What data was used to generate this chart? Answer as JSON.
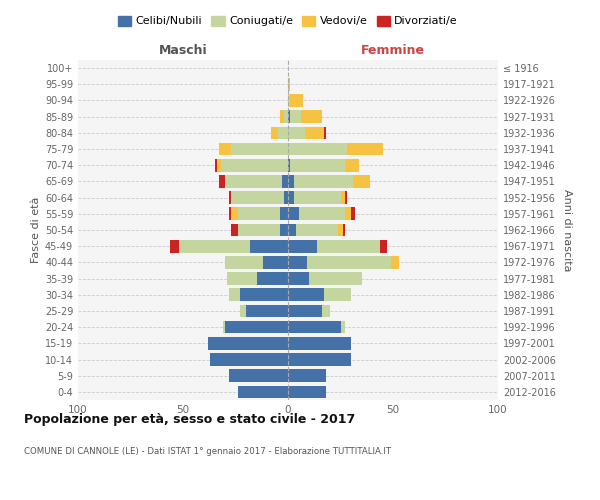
{
  "age_groups": [
    "0-4",
    "5-9",
    "10-14",
    "15-19",
    "20-24",
    "25-29",
    "30-34",
    "35-39",
    "40-44",
    "45-49",
    "50-54",
    "55-59",
    "60-64",
    "65-69",
    "70-74",
    "75-79",
    "80-84",
    "85-89",
    "90-94",
    "95-99",
    "100+"
  ],
  "birth_years": [
    "2012-2016",
    "2007-2011",
    "2002-2006",
    "1997-2001",
    "1992-1996",
    "1987-1991",
    "1982-1986",
    "1977-1981",
    "1972-1976",
    "1967-1971",
    "1962-1966",
    "1957-1961",
    "1952-1956",
    "1947-1951",
    "1942-1946",
    "1937-1941",
    "1932-1936",
    "1927-1931",
    "1922-1926",
    "1917-1921",
    "≤ 1916"
  ],
  "males": {
    "celibi": [
      24,
      28,
      37,
      38,
      30,
      20,
      23,
      15,
      12,
      18,
      4,
      4,
      2,
      3,
      0,
      0,
      0,
      0,
      0,
      0,
      0
    ],
    "coniugati": [
      0,
      0,
      0,
      0,
      1,
      3,
      5,
      14,
      18,
      34,
      20,
      20,
      25,
      27,
      32,
      27,
      5,
      2,
      0,
      0,
      0
    ],
    "vedovi": [
      0,
      0,
      0,
      0,
      0,
      0,
      0,
      0,
      0,
      0,
      0,
      3,
      0,
      0,
      2,
      6,
      3,
      2,
      0,
      0,
      0
    ],
    "divorziati": [
      0,
      0,
      0,
      0,
      0,
      0,
      0,
      0,
      0,
      4,
      3,
      1,
      1,
      3,
      1,
      0,
      0,
      0,
      0,
      0,
      0
    ]
  },
  "females": {
    "nubili": [
      18,
      18,
      30,
      30,
      25,
      16,
      17,
      10,
      9,
      14,
      4,
      5,
      3,
      3,
      1,
      0,
      0,
      1,
      0,
      0,
      0
    ],
    "coniugate": [
      0,
      0,
      0,
      0,
      2,
      4,
      13,
      25,
      40,
      30,
      20,
      22,
      22,
      28,
      26,
      28,
      8,
      5,
      1,
      0,
      0
    ],
    "vedove": [
      0,
      0,
      0,
      0,
      0,
      0,
      0,
      0,
      4,
      0,
      2,
      3,
      2,
      8,
      7,
      17,
      9,
      10,
      6,
      1,
      0
    ],
    "divorziate": [
      0,
      0,
      0,
      0,
      0,
      0,
      0,
      0,
      0,
      3,
      1,
      2,
      1,
      0,
      0,
      0,
      1,
      0,
      0,
      0,
      0
    ]
  },
  "colors": {
    "celibi": "#4472a8",
    "coniugati": "#c5d5a0",
    "vedovi": "#f5c242",
    "divorziati": "#cc2222"
  },
  "xlim": 100,
  "title": "Popolazione per età, sesso e stato civile - 2017",
  "subtitle": "COMUNE DI CANNOLE (LE) - Dati ISTAT 1° gennaio 2017 - Elaborazione TUTTITALIA.IT",
  "xlabel_left": "Maschi",
  "xlabel_right": "Femmine",
  "ylabel_left": "Fasce di età",
  "ylabel_right": "Anni di nascita",
  "legend_labels": [
    "Celibi/Nubili",
    "Coniugati/e",
    "Vedovi/e",
    "Divorziati/e"
  ],
  "background_color": "#f5f5f5",
  "grid_color": "#cccccc"
}
